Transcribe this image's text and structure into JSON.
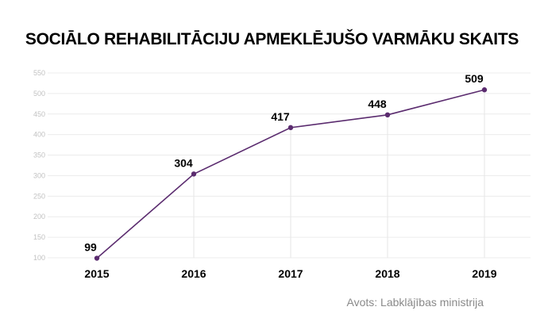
{
  "chart_data": {
    "type": "line",
    "title": "SOCIĀLO REHABILITĀCIJU APMEKLĒJUŠO VARMĀKU SKAITS",
    "categories": [
      "2015",
      "2016",
      "2017",
      "2018",
      "2019"
    ],
    "series": [
      {
        "values": [
          99,
          304,
          417,
          448,
          509
        ],
        "color": "#5b2c6f"
      }
    ],
    "data_labels": [
      "99",
      "304",
      "417",
      "448",
      "509"
    ],
    "y_ticks": [
      "100",
      "150",
      "200",
      "250",
      "300",
      "350",
      "400",
      "450",
      "500",
      "550"
    ],
    "ylim": [
      100,
      550
    ],
    "grid": true,
    "source": "Avots: Labklājības ministrija"
  }
}
